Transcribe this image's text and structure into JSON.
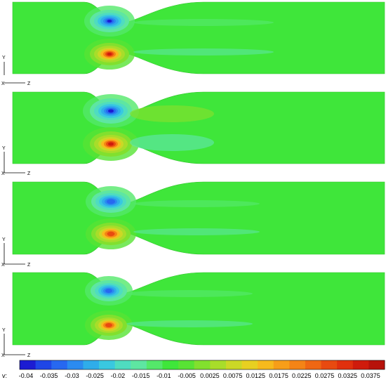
{
  "colorbar": {
    "variable_label": "v:",
    "tick_labels": [
      "-0.04",
      "-0.035",
      "-0.03",
      "-0.025",
      "-0.02",
      "-0.015",
      "-0.01",
      "-0.005",
      "0.0025",
      "0.0075",
      "0.0125",
      "0.0175",
      "0.0225",
      "0.0275",
      "0.0325",
      "0.0375"
    ],
    "colors": [
      "#1c1cd2",
      "#1f46e6",
      "#2768f0",
      "#2b8bf0",
      "#2fadea",
      "#39c8e0",
      "#4fdcc0",
      "#5ee6a2",
      "#54e86a",
      "#3fe63a",
      "#58e334",
      "#82e02e",
      "#a8dd2a",
      "#cbd826",
      "#e8d021",
      "#f7ba1d",
      "#f79e19",
      "#f48416",
      "#ef6713",
      "#e84a10",
      "#e0300d",
      "#cf1b0c",
      "#b7120a"
    ],
    "base_field_color": "#3fe63a"
  },
  "panels": [
    {
      "name": "panel-1",
      "axis": {
        "y": "Y",
        "z": "Z",
        "x": "X"
      }
    },
    {
      "name": "panel-2",
      "axis": {
        "y": "Y",
        "z": "Z",
        "x": "X"
      }
    },
    {
      "name": "panel-3",
      "axis": {
        "y": "Y",
        "z": "Z",
        "x": "X"
      }
    },
    {
      "name": "panel-4",
      "axis": {
        "y": "Y",
        "z": "Z",
        "x": "X"
      }
    }
  ]
}
